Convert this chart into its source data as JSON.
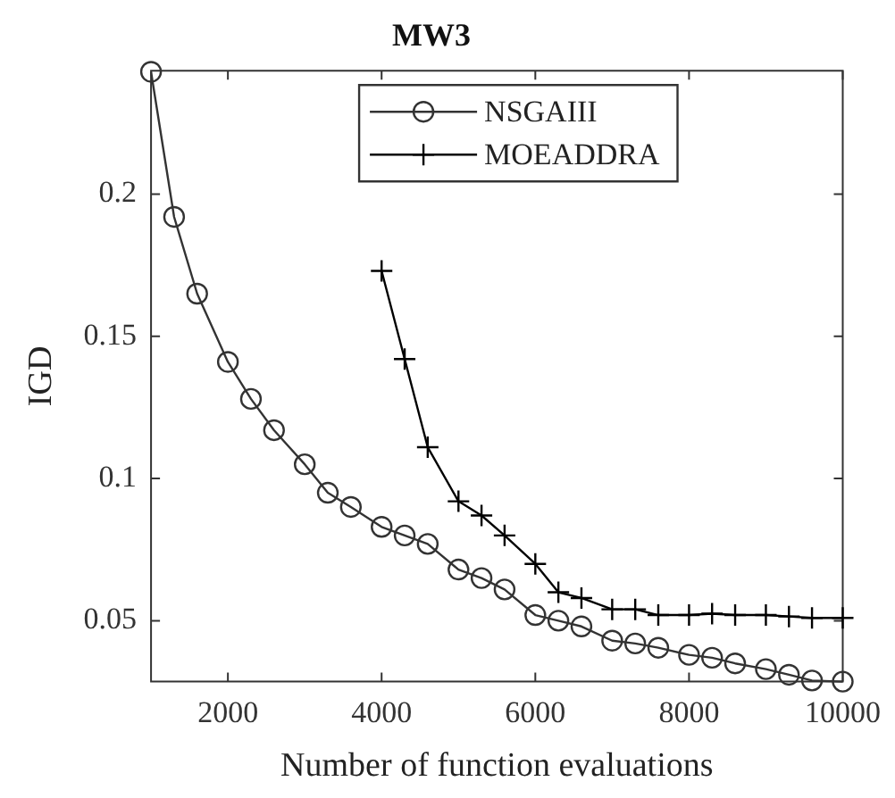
{
  "chart_data": {
    "type": "line",
    "title": "MW3",
    "xlabel": "Number of function evaluations",
    "ylabel": "IGD",
    "x": [
      1000,
      1300,
      1600,
      2000,
      2300,
      2600,
      3000,
      3300,
      3600,
      4000,
      4300,
      4600,
      5000,
      5300,
      5600,
      6000,
      6300,
      6600,
      7000,
      7300,
      7600,
      8000,
      8300,
      8600,
      9000,
      9300,
      9600,
      10000
    ],
    "series": [
      {
        "name": "NSGAIII",
        "color": "#333333",
        "marker": "circle",
        "values": [
          0.243,
          0.192,
          0.165,
          0.141,
          0.128,
          0.117,
          0.105,
          0.095,
          0.09,
          0.083,
          0.08,
          0.077,
          0.068,
          0.065,
          0.061,
          0.052,
          0.05,
          0.048,
          0.043,
          0.042,
          0.0405,
          0.038,
          0.037,
          0.035,
          0.033,
          0.031,
          0.029,
          0.0286
        ]
      },
      {
        "name": "MOEADDRA",
        "color": "#000000",
        "marker": "cross",
        "x": [
          4000,
          4300,
          4600,
          5000,
          5300,
          5600,
          6000,
          6300,
          6600,
          7000,
          7300,
          7600,
          8000,
          8300,
          8600,
          9000,
          9300,
          9600,
          10000
        ],
        "values": [
          0.173,
          0.142,
          0.111,
          0.092,
          0.087,
          0.08,
          0.07,
          0.06,
          0.058,
          0.054,
          0.054,
          0.052,
          0.052,
          0.0525,
          0.052,
          0.052,
          0.0515,
          0.051,
          0.051
        ]
      }
    ],
    "xlim": [
      1000,
      10000
    ],
    "xticks": [
      2000,
      4000,
      6000,
      8000,
      10000
    ],
    "ylim": [
      0.0286,
      0.2434
    ],
    "yticks": [
      0.05,
      0.1,
      0.15,
      0.2
    ],
    "grid": false,
    "legend": "top",
    "line_style": "solid"
  }
}
